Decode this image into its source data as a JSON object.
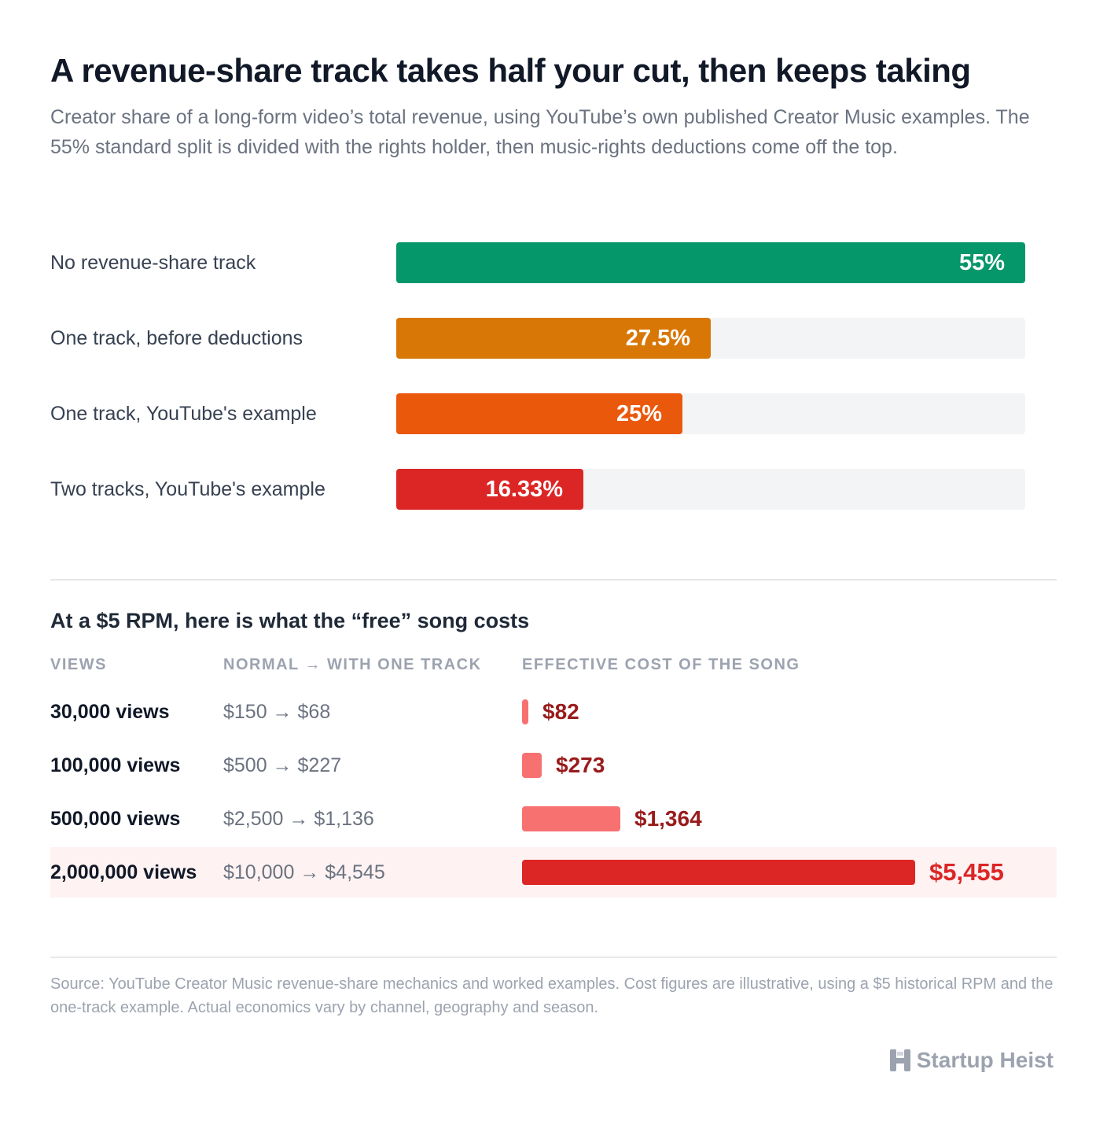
{
  "header": {
    "title": "A revenue-share track takes half your cut, then keeps taking",
    "subtitle": "Creator share of a long-form video’s total revenue, using YouTube’s own published Creator Music examples. The 55% standard split is divided with the rights holder, then music-rights deductions come off the top."
  },
  "chart_data": [
    {
      "type": "bar",
      "orientation": "horizontal",
      "categories": [
        "No revenue-share track",
        "One track, before deductions",
        "One track, YouTube's example",
        "Two tracks, YouTube's example"
      ],
      "values": [
        55,
        27.5,
        25,
        16.33
      ],
      "value_labels": [
        "55%",
        "27.5%",
        "25%",
        "16.33%"
      ],
      "xlim": [
        0,
        55
      ],
      "colors": [
        "#059669",
        "#d97706",
        "#ea580c",
        "#dc2626"
      ],
      "grid": false
    },
    {
      "type": "table",
      "title": "At a $5 RPM, here is what the “free” song costs",
      "columns": [
        "VIEWS",
        "NORMAL → WITH ONE TRACK",
        "EFFECTIVE COST OF THE SONG"
      ],
      "rows": [
        {
          "views": "30,000 views",
          "compare": "$150 → $68",
          "cost": 82,
          "cost_label": "$82",
          "highlight": false
        },
        {
          "views": "100,000 views",
          "compare": "$500 → $227",
          "cost": 273,
          "cost_label": "$273",
          "highlight": false
        },
        {
          "views": "500,000 views",
          "compare": "$2,500 → $1,136",
          "cost": 1364,
          "cost_label": "$1,364",
          "highlight": false
        },
        {
          "views": "2,000,000 views",
          "compare": "$10,000 → $4,545",
          "cost": 5455,
          "cost_label": "$5,455",
          "highlight": true
        }
      ],
      "xlim": [
        0,
        5455
      ],
      "colors": {
        "bar": "#f87171",
        "bar_highlight": "#dc2626",
        "text": "#991b1b",
        "text_highlight": "#dc2626",
        "row_highlight": "#fef2f2"
      }
    }
  ],
  "footer": {
    "source": "Source: YouTube Creator Music revenue-share mechanics and worked examples. Cost figures are illustrative, using a $5 historical RPM and the one-track example. Actual economics vary by channel, geography and season.",
    "brand": "Startup Heist",
    "brand_icon": "heist-h-logo-icon"
  }
}
